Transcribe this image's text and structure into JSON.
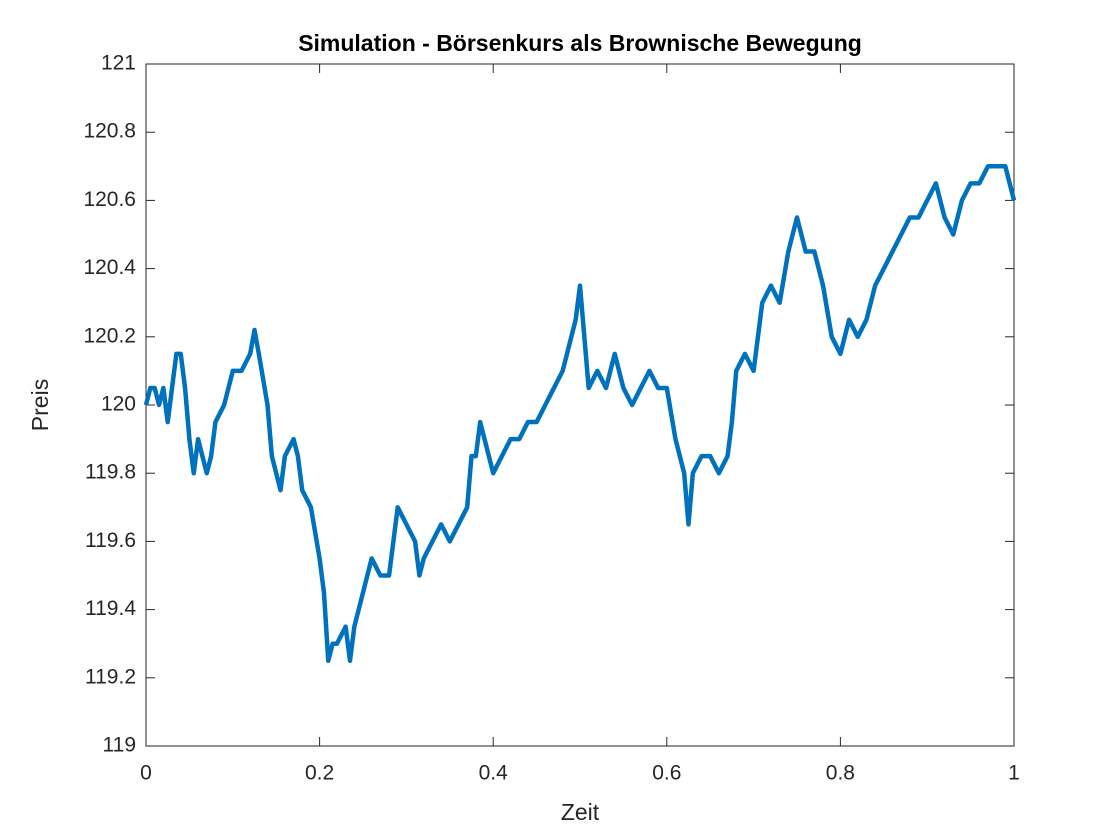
{
  "chart_data": {
    "type": "line",
    "title": "Simulation - Börsenkurs als Brownische Bewegung",
    "xlabel": "Zeit",
    "ylabel": "Preis",
    "x": [
      0,
      0.005,
      0.01,
      0.015,
      0.02,
      0.025,
      0.03,
      0.035,
      0.04,
      0.045,
      0.05,
      0.055,
      0.06,
      0.065,
      0.07,
      0.075,
      0.08,
      0.09,
      0.1,
      0.11,
      0.12,
      0.125,
      0.13,
      0.14,
      0.145,
      0.15,
      0.155,
      0.16,
      0.17,
      0.175,
      0.18,
      0.19,
      0.2,
      0.205,
      0.21,
      0.215,
      0.22,
      0.23,
      0.235,
      0.24,
      0.25,
      0.26,
      0.27,
      0.28,
      0.29,
      0.3,
      0.31,
      0.315,
      0.32,
      0.33,
      0.34,
      0.35,
      0.36,
      0.37,
      0.375,
      0.38,
      0.385,
      0.39,
      0.4,
      0.41,
      0.42,
      0.43,
      0.44,
      0.45,
      0.46,
      0.47,
      0.48,
      0.49,
      0.495,
      0.5,
      0.505,
      0.51,
      0.52,
      0.53,
      0.54,
      0.55,
      0.56,
      0.57,
      0.58,
      0.59,
      0.6,
      0.61,
      0.62,
      0.625,
      0.63,
      0.64,
      0.65,
      0.66,
      0.67,
      0.675,
      0.68,
      0.69,
      0.7,
      0.71,
      0.72,
      0.73,
      0.74,
      0.745,
      0.75,
      0.76,
      0.77,
      0.78,
      0.79,
      0.8,
      0.81,
      0.82,
      0.83,
      0.84,
      0.85,
      0.86,
      0.87,
      0.88,
      0.89,
      0.9,
      0.91,
      0.92,
      0.93,
      0.94,
      0.95,
      0.96,
      0.97,
      0.98,
      0.99,
      1.0
    ],
    "series": [
      {
        "color": "#0072BD",
        "values": [
          120.0,
          120.05,
          120.05,
          120.0,
          120.05,
          119.95,
          120.05,
          120.15,
          120.15,
          120.05,
          119.9,
          119.8,
          119.9,
          119.85,
          119.8,
          119.85,
          119.95,
          120.0,
          120.1,
          120.1,
          120.15,
          120.22,
          120.15,
          120.0,
          119.85,
          119.8,
          119.75,
          119.85,
          119.9,
          119.85,
          119.75,
          119.7,
          119.55,
          119.45,
          119.25,
          119.3,
          119.3,
          119.35,
          119.25,
          119.35,
          119.45,
          119.55,
          119.5,
          119.5,
          119.7,
          119.65,
          119.6,
          119.5,
          119.55,
          119.6,
          119.65,
          119.6,
          119.65,
          119.7,
          119.85,
          119.85,
          119.95,
          119.9,
          119.8,
          119.85,
          119.9,
          119.9,
          119.95,
          119.95,
          120.0,
          120.05,
          120.1,
          120.2,
          120.25,
          120.35,
          120.2,
          120.05,
          120.1,
          120.05,
          120.15,
          120.05,
          120.0,
          120.05,
          120.1,
          120.05,
          120.05,
          119.9,
          119.8,
          119.65,
          119.8,
          119.85,
          119.85,
          119.8,
          119.85,
          119.95,
          120.1,
          120.15,
          120.1,
          120.3,
          120.35,
          120.3,
          120.45,
          120.5,
          120.55,
          120.45,
          120.45,
          120.35,
          120.2,
          120.15,
          120.25,
          120.2,
          120.25,
          120.35,
          120.4,
          120.45,
          120.5,
          120.55,
          120.55,
          120.6,
          120.65,
          120.55,
          120.5,
          120.6,
          120.65,
          120.65,
          120.7,
          120.7,
          120.7,
          120.6
        ]
      }
    ],
    "xlim": [
      0,
      1
    ],
    "xticks": [
      0,
      0.2,
      0.4,
      0.6,
      0.8,
      1
    ],
    "ylim": [
      119,
      121
    ],
    "yticks": [
      119,
      119.2,
      119.4,
      119.6,
      119.8,
      120,
      120.2,
      120.4,
      120.6,
      120.8,
      121
    ]
  }
}
